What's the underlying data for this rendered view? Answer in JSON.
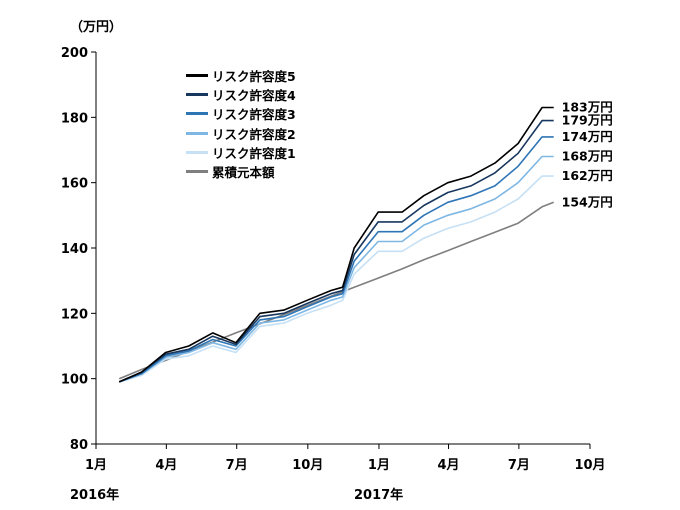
{
  "chart_data": {
    "type": "line",
    "unit_label": "（万円）",
    "y_ticks": [
      "80",
      "100",
      "120",
      "140",
      "160",
      "180",
      "200"
    ],
    "ylim": [
      80,
      200
    ],
    "x_ticks": [
      "1月",
      "4月",
      "7月",
      "10月",
      "1月",
      "4月",
      "7月",
      "10月"
    ],
    "xlim": [
      "2016-01",
      "2017-10"
    ],
    "year_labels": [
      "2016年",
      "2017年"
    ],
    "grid": false,
    "legend_position": "top-left",
    "x": [
      "2016-01-31",
      "2016-02-29",
      "2016-03-31",
      "2016-04-30",
      "2016-05-31",
      "2016-06-30",
      "2016-07-31",
      "2016-08-31",
      "2016-09-30",
      "2016-10-31",
      "2016-11-15",
      "2016-11-30",
      "2016-12-31",
      "2017-01-31",
      "2017-02-28",
      "2017-03-31",
      "2017-04-30",
      "2017-05-31",
      "2017-06-30",
      "2017-07-31",
      "2017-08-15"
    ],
    "series": [
      {
        "name": "リスク許容度5",
        "color": "#000000",
        "end_label": "183万円",
        "values": [
          99,
          102,
          108,
          110,
          114,
          111,
          120,
          121,
          124,
          127,
          128,
          140,
          151,
          151,
          156,
          160,
          162,
          166,
          172,
          183,
          183
        ]
      },
      {
        "name": "リスク許容度4",
        "color": "#17375e",
        "end_label": "179万円",
        "values": [
          99,
          102,
          107.5,
          109,
          113,
          110.5,
          119,
          120,
          123,
          126,
          127,
          138,
          148,
          148,
          153,
          157,
          159,
          163,
          169,
          179,
          179
        ]
      },
      {
        "name": "リスク許容度3",
        "color": "#2e75b6",
        "end_label": "174万円",
        "values": [
          99,
          101.5,
          107,
          108.5,
          112,
          110,
          118,
          119,
          122,
          125,
          126,
          136,
          145,
          145,
          150,
          154,
          156,
          159,
          165,
          174,
          174
        ]
      },
      {
        "name": "リスク許容度2",
        "color": "#7fb7e3",
        "end_label": "168万円",
        "values": [
          99,
          101.5,
          106.5,
          108,
          111,
          109,
          117,
          118,
          121,
          124,
          125,
          134,
          142,
          142,
          147,
          150,
          152,
          155,
          160,
          168,
          168
        ]
      },
      {
        "name": "リスク許容度1",
        "color": "#c6e0f5",
        "end_label": "162万円",
        "values": [
          99,
          101,
          106,
          107,
          110,
          108,
          116,
          117,
          120,
          122.5,
          124,
          132,
          139,
          139,
          143,
          146,
          148,
          151,
          155,
          162,
          162
        ]
      },
      {
        "name": "累積元本額",
        "color": "#7f7f7f",
        "end_label": "154万円",
        "values": [
          100,
          102.8,
          105.6,
          108.4,
          111.2,
          114,
          116.8,
          119.6,
          122.4,
          125.2,
          126.6,
          128,
          130.8,
          133.6,
          136.4,
          139.2,
          142,
          144.8,
          147.6,
          152.6,
          154
        ]
      }
    ]
  }
}
